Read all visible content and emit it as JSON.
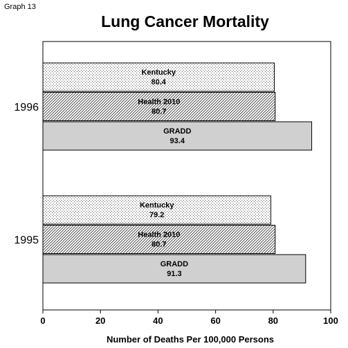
{
  "graph_label": "Graph 13",
  "chart_data": {
    "type": "bar",
    "orientation": "horizontal",
    "title": "Lung Cancer Mortality",
    "xlabel": "Number of Deaths Per 100,000 Persons",
    "ylabel": "",
    "xlim": [
      0,
      100
    ],
    "xticks": [
      0,
      20,
      40,
      60,
      80,
      100
    ],
    "categories": [
      "1996",
      "1995"
    ],
    "series": [
      {
        "name": "Kentucky",
        "values": [
          80.4,
          79.2
        ],
        "pattern": "dots"
      },
      {
        "name": "Health 2010",
        "values": [
          80.7,
          80.7
        ],
        "pattern": "diagonal-hatch"
      },
      {
        "name": "GRADD",
        "values": [
          93.4,
          91.3
        ],
        "pattern": "solid-gray",
        "color": "#d0d0d0"
      }
    ],
    "value_labels": [
      [
        "80.4",
        "80.7",
        "93.4"
      ],
      [
        "79.2",
        "80.7",
        "91.3"
      ]
    ],
    "grid": false,
    "legend": "none (series names printed inside bars)"
  }
}
